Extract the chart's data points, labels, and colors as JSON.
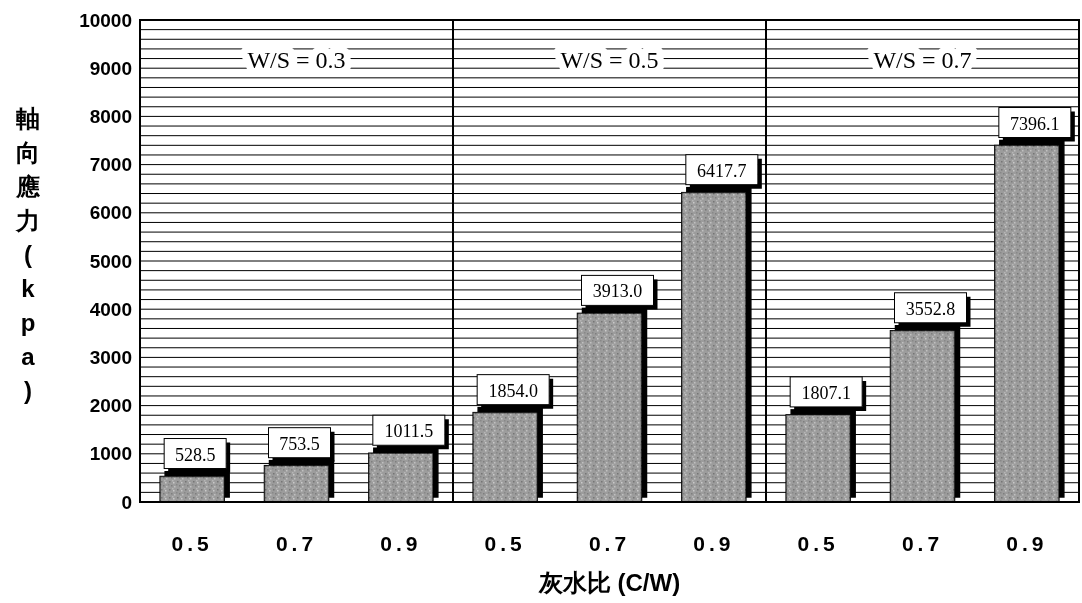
{
  "chart_data": [
    {
      "type": "bar",
      "title": "W/S = 0.3",
      "ylabel": "軸向應力(kpa)",
      "categories": [
        "0.5",
        "0.7",
        "0.9"
      ],
      "color": "#9c9c9c",
      "values": [
        528.5,
        753.5,
        1011.5
      ],
      "value_labels": [
        "528.5",
        "753.5",
        "1011.5"
      ],
      "ylim": [
        0,
        10000
      ],
      "yticks": [
        0,
        {
          "value": 200,
          "label": null
        },
        {
          "value": 400,
          "label": null
        },
        {
          "value": 600,
          "label": null
        },
        {
          "value": 800,
          "label": null
        },
        1000,
        {
          "value": 1200,
          "label": null
        },
        {
          "value": 1400,
          "label": null
        },
        {
          "value": 1600,
          "label": null
        },
        {
          "value": 1800,
          "label": null
        },
        2000,
        {
          "value": 2200,
          "label": null
        },
        {
          "value": 2400,
          "label": null
        },
        {
          "value": 2600,
          "label": null
        },
        {
          "value": 2800,
          "label": null
        },
        3000,
        {
          "value": 3200,
          "label": null
        },
        {
          "value": 3400,
          "label": null
        },
        {
          "value": 3600,
          "label": null
        },
        {
          "value": 3800,
          "label": null
        },
        4000,
        {
          "value": 4200,
          "label": null
        },
        {
          "value": 4400,
          "label": null
        },
        {
          "value": 4600,
          "label": null
        },
        {
          "value": 4800,
          "label": null
        },
        5000,
        {
          "value": 5200,
          "label": null
        },
        {
          "value": 5400,
          "label": null
        },
        {
          "value": 5600,
          "label": null
        },
        {
          "value": 5800,
          "label": null
        },
        6000,
        {
          "value": 6200,
          "label": null
        },
        {
          "value": 6400,
          "label": null
        },
        {
          "value": 6600,
          "label": null
        },
        {
          "value": 6800,
          "label": null
        },
        7000,
        {
          "value": 7200,
          "label": null
        },
        {
          "value": 7400,
          "label": null
        },
        {
          "value": 7600,
          "label": null
        },
        {
          "value": 7800,
          "label": null
        },
        8000,
        {
          "value": 8200,
          "label": null
        },
        {
          "value": 8400,
          "label": null
        },
        {
          "value": 8600,
          "label": null
        },
        {
          "value": 8800,
          "label": null
        },
        9000,
        {
          "value": 9200,
          "label": null
        },
        {
          "value": 9400,
          "label": null
        },
        {
          "value": 9600,
          "label": null
        },
        {
          "value": 9800,
          "label": null
        },
        10000
      ],
      "grid": "y"
    },
    {
      "type": "bar",
      "title": "W/S = 0.5",
      "xlabel": "灰水比 (C/W)",
      "categories": [
        "0.5",
        "0.7",
        "0.9"
      ],
      "color": "#9c9c9c",
      "values": [
        1854.0,
        3913.0,
        6417.7
      ],
      "value_labels": [
        "1854.0",
        "3913.0",
        "6417.7"
      ],
      "ylim": [
        0,
        10000
      ],
      "yticks": [
        0,
        {
          "value": 200,
          "label": null
        },
        {
          "value": 400,
          "label": null
        },
        {
          "value": 600,
          "label": null
        },
        {
          "value": 800,
          "label": null
        },
        {
          "value": 1000,
          "label": null
        },
        {
          "value": 1200,
          "label": null
        },
        {
          "value": 1400,
          "label": null
        },
        {
          "value": 1600,
          "label": null
        },
        {
          "value": 1800,
          "label": null
        },
        {
          "value": 2000,
          "label": null
        },
        {
          "value": 2200,
          "label": null
        },
        {
          "value": 2400,
          "label": null
        },
        {
          "value": 2600,
          "label": null
        },
        {
          "value": 2800,
          "label": null
        },
        {
          "value": 3000,
          "label": null
        },
        {
          "value": 3200,
          "label": null
        },
        {
          "value": 3400,
          "label": null
        },
        {
          "value": 3600,
          "label": null
        },
        {
          "value": 3800,
          "label": null
        },
        {
          "value": 4000,
          "label": null
        },
        {
          "value": 4200,
          "label": null
        },
        {
          "value": 4400,
          "label": null
        },
        {
          "value": 4600,
          "label": null
        },
        {
          "value": 4800,
          "label": null
        },
        {
          "value": 5000,
          "label": null
        },
        {
          "value": 5200,
          "label": null
        },
        {
          "value": 5400,
          "label": null
        },
        {
          "value": 5600,
          "label": null
        },
        {
          "value": 5800,
          "label": null
        },
        {
          "value": 6000,
          "label": null
        },
        {
          "value": 6200,
          "label": null
        },
        {
          "value": 6400,
          "label": null
        },
        {
          "value": 6600,
          "label": null
        },
        {
          "value": 6800,
          "label": null
        },
        {
          "value": 7000,
          "label": null
        },
        {
          "value": 7200,
          "label": null
        },
        {
          "value": 7400,
          "label": null
        },
        {
          "value": 7600,
          "label": null
        },
        {
          "value": 7800,
          "label": null
        },
        {
          "value": 8000,
          "label": null
        },
        {
          "value": 8200,
          "label": null
        },
        {
          "value": 8400,
          "label": null
        },
        {
          "value": 8600,
          "label": null
        },
        {
          "value": 8800,
          "label": null
        },
        {
          "value": 9000,
          "label": null
        },
        {
          "value": 9200,
          "label": null
        },
        {
          "value": 9400,
          "label": null
        },
        {
          "value": 9600,
          "label": null
        },
        {
          "value": 9800,
          "label": null
        },
        {
          "value": 10000,
          "label": null
        }
      ],
      "grid": "y",
      "tick_labels": "x"
    },
    {
      "type": "bar",
      "title": "W/S = 0.7",
      "categories": [
        "0.5",
        "0.7",
        "0.9"
      ],
      "color": "#9c9c9c",
      "values": [
        1807.1,
        3552.8,
        7396.1
      ],
      "value_labels": [
        "1807.1",
        "3552.8",
        "7396.1"
      ],
      "ylim": [
        0,
        10000
      ],
      "yticks": [
        0,
        {
          "value": 200,
          "label": null
        },
        {
          "value": 400,
          "label": null
        },
        {
          "value": 600,
          "label": null
        },
        {
          "value": 800,
          "label": null
        },
        {
          "value": 1000,
          "label": null
        },
        {
          "value": 1200,
          "label": null
        },
        {
          "value": 1400,
          "label": null
        },
        {
          "value": 1600,
          "label": null
        },
        {
          "value": 1800,
          "label": null
        },
        {
          "value": 2000,
          "label": null
        },
        {
          "value": 2200,
          "label": null
        },
        {
          "value": 2400,
          "label": null
        },
        {
          "value": 2600,
          "label": null
        },
        {
          "value": 2800,
          "label": null
        },
        {
          "value": 3000,
          "label": null
        },
        {
          "value": 3200,
          "label": null
        },
        {
          "value": 3400,
          "label": null
        },
        {
          "value": 3600,
          "label": null
        },
        {
          "value": 3800,
          "label": null
        },
        {
          "value": 4000,
          "label": null
        },
        {
          "value": 4200,
          "label": null
        },
        {
          "value": 4400,
          "label": null
        },
        {
          "value": 4600,
          "label": null
        },
        {
          "value": 4800,
          "label": null
        },
        {
          "value": 5000,
          "label": null
        },
        {
          "value": 5200,
          "label": null
        },
        {
          "value": 5400,
          "label": null
        },
        {
          "value": 5600,
          "label": null
        },
        {
          "value": 5800,
          "label": null
        },
        {
          "value": 6000,
          "label": null
        },
        {
          "value": 6200,
          "label": null
        },
        {
          "value": 6400,
          "label": null
        },
        {
          "value": 6600,
          "label": null
        },
        {
          "value": 6800,
          "label": null
        },
        {
          "value": 7000,
          "label": null
        },
        {
          "value": 7200,
          "label": null
        },
        {
          "value": 7400,
          "label": null
        },
        {
          "value": 7600,
          "label": null
        },
        {
          "value": 7800,
          "label": null
        },
        {
          "value": 8000,
          "label": null
        },
        {
          "value": 8200,
          "label": null
        },
        {
          "value": 8400,
          "label": null
        },
        {
          "value": 8600,
          "label": null
        },
        {
          "value": 8800,
          "label": null
        },
        {
          "value": 9000,
          "label": null
        },
        {
          "value": 9200,
          "label": null
        },
        {
          "value": 9400,
          "label": null
        },
        {
          "value": 9600,
          "label": null
        },
        {
          "value": 9800,
          "label": null
        },
        {
          "value": 10000,
          "label": null
        }
      ],
      "grid": "y",
      "tick_labels": "x"
    }
  ]
}
